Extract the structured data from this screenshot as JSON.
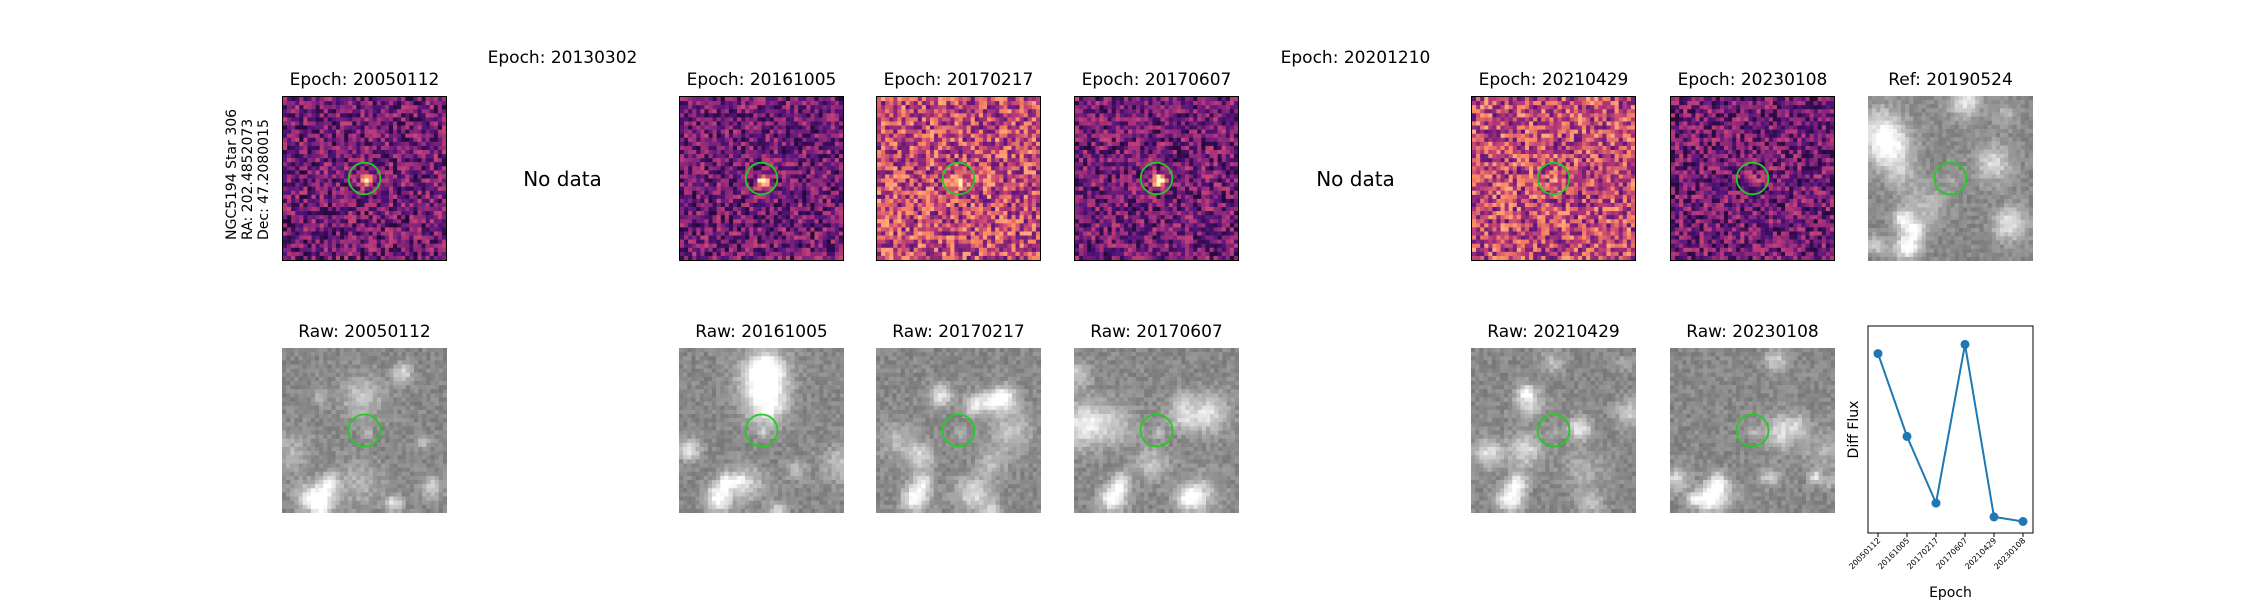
{
  "star_label": [
    "NGC5194 Star 306",
    "RA: 202.4852073",
    "Dec: 47.2080015"
  ],
  "top_row": [
    {
      "title": "Epoch: 20050112",
      "status": "image",
      "palette": "magma",
      "seed": 11,
      "flux": 0.85
    },
    {
      "title": "Epoch: 20130302",
      "status": "No data"
    },
    {
      "title": "Epoch: 20161005",
      "status": "image",
      "palette": "magma",
      "seed": 23,
      "flux": 0.75
    },
    {
      "title": "Epoch: 20170217",
      "status": "image",
      "palette": "magma-bright",
      "seed": 37,
      "flux": 0.35
    },
    {
      "title": "Epoch: 20170607",
      "status": "image",
      "palette": "magma",
      "seed": 41,
      "flux": 0.9
    },
    {
      "title": "Epoch: 20201210",
      "status": "No data"
    },
    {
      "title": "Epoch: 20210429",
      "status": "image",
      "palette": "magma-bright",
      "seed": 53,
      "flux": 0.3
    },
    {
      "title": "Epoch: 20230108",
      "status": "image",
      "palette": "magma",
      "seed": 67,
      "flux": 0.3
    },
    {
      "title": "Ref: 20190524",
      "status": "image",
      "palette": "gray",
      "seed": 79,
      "flux": 0.2
    }
  ],
  "bottom_row": [
    {
      "title": "Raw: 20050112",
      "seed": 101
    },
    null,
    {
      "title": "Raw: 20161005",
      "seed": 102
    },
    {
      "title": "Raw: 20170217",
      "seed": 103
    },
    {
      "title": "Raw: 20170607",
      "seed": 104
    },
    null,
    {
      "title": "Raw: 20210429",
      "seed": 105
    },
    {
      "title": "Raw: 20230108",
      "seed": 106
    }
  ],
  "circle_color": "#22cc22",
  "chart_data": {
    "type": "line",
    "title": "",
    "xlabel": "Epoch",
    "ylabel": "Diff Flux",
    "categories": [
      "20050112",
      "20161005",
      "20170217",
      "20170607",
      "20210429",
      "20230108"
    ],
    "values": [
      0.88,
      0.52,
      0.23,
      0.92,
      0.17,
      0.15
    ],
    "ylim": [
      0.1,
      1.0
    ],
    "y_ticks_shown": false,
    "grid": false,
    "color": "#1f77b4",
    "marker": "circle"
  }
}
